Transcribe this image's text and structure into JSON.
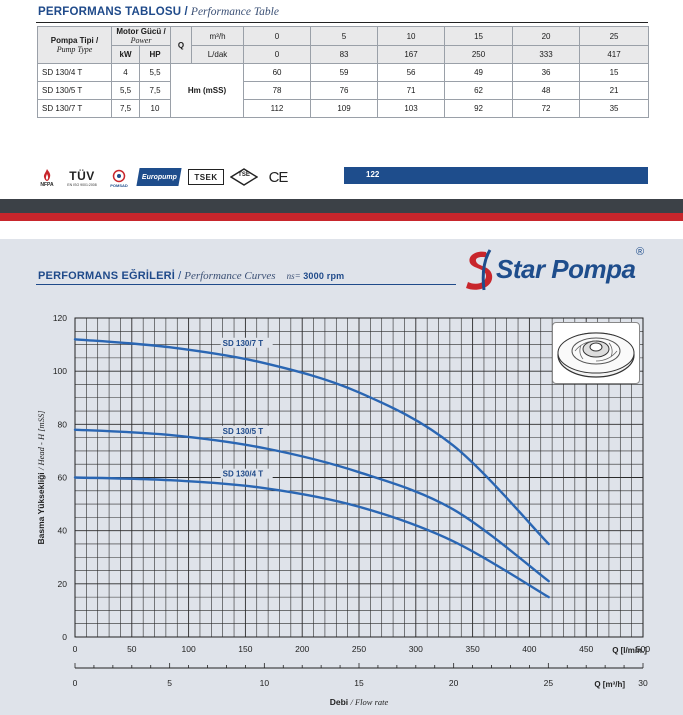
{
  "table": {
    "section_title_bold": "PERFORMANS TABLOSU",
    "section_title_sep": "/",
    "section_title_italic": "Performance Table",
    "pump_type_label": "Pompa Tipi /",
    "pump_type_label_en": "Pump Type",
    "motor_power_label": "Motor Gücü /",
    "motor_power_label_en": "Power",
    "kw_label": "kW",
    "hp_label": "HP",
    "q_label": "Q",
    "unit_m3h": "m³/h",
    "unit_ldak": "L/dak",
    "hm_label": "Hm (mSS)",
    "q_m3h": [
      "0",
      "5",
      "10",
      "15",
      "20",
      "25"
    ],
    "q_ldak": [
      "0",
      "83",
      "167",
      "250",
      "333",
      "417"
    ],
    "rows": [
      {
        "model": "SD 130/4 T",
        "kw": "4",
        "hp": "5,5",
        "heads": [
          "60",
          "59",
          "56",
          "49",
          "36",
          "15"
        ]
      },
      {
        "model": "SD 130/5 T",
        "kw": "5,5",
        "hp": "7,5",
        "heads": [
          "78",
          "76",
          "71",
          "62",
          "48",
          "21"
        ]
      },
      {
        "model": "SD 130/7 T",
        "kw": "7,5",
        "hp": "10",
        "heads": [
          "112",
          "109",
          "103",
          "92",
          "72",
          "35"
        ]
      }
    ]
  },
  "certifications": {
    "nfpa": "NFPA",
    "tuv": "TÜV",
    "tuv_sub": "EN ISO 9001:2008",
    "pomsad": "POMSAD",
    "europump": "Europump",
    "tsek": "TSEK",
    "tse": "TSE",
    "ce": "CE"
  },
  "page_number": "122",
  "brand": {
    "name": "Star Pompa",
    "registered": "®"
  },
  "curves_header": {
    "title_bold": "PERFORMANS EĞRİLERİ",
    "sep": "/",
    "title_italic": "Performance Curves",
    "speed_prefix": "ns=",
    "speed_value": "3000 rpm"
  },
  "colors": {
    "brand_blue": "#1f4a8a",
    "curve_blue": "#2a66b3",
    "brand_red": "#c8262c",
    "chart_bg": "#dfe3ea"
  },
  "chart_data": {
    "type": "line",
    "ylabel_bold": "Basma Yüksekliği",
    "ylabel_italic": "/ Head - H [mSS]",
    "xlabel_bold": "Debi",
    "xlabel_italic": "/ Flow rate",
    "x_unit_lmin": "Q [l/min.]",
    "x_unit_m3h": "Q [m³/h]",
    "ylim": [
      0,
      120
    ],
    "y_ticks": [
      "0",
      "20",
      "40",
      "60",
      "80",
      "100",
      "120"
    ],
    "xlim_lmin": [
      0,
      500
    ],
    "x_ticks_lmin": [
      "0",
      "50",
      "100",
      "150",
      "200",
      "250",
      "300",
      "350",
      "400",
      "450",
      "500"
    ],
    "x_ticks_m3h": [
      "0",
      "5",
      "10",
      "15",
      "20",
      "25",
      "30"
    ],
    "grid": true,
    "series": [
      {
        "name": "SD 130/7 T",
        "x": [
          0,
          83,
          167,
          250,
          333,
          417
        ],
        "y": [
          112,
          109,
          103,
          92,
          72,
          35
        ]
      },
      {
        "name": "SD 130/5 T",
        "x": [
          0,
          83,
          167,
          250,
          333,
          417
        ],
        "y": [
          78,
          76,
          71,
          62,
          48,
          21
        ]
      },
      {
        "name": "SD 130/4 T",
        "x": [
          0,
          83,
          167,
          250,
          333,
          417
        ],
        "y": [
          60,
          59,
          56,
          49,
          36,
          15
        ]
      }
    ]
  }
}
